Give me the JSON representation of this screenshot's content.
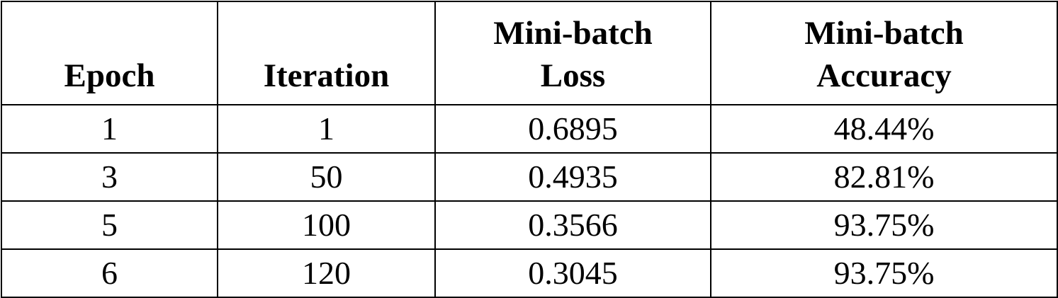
{
  "table": {
    "headers": [
      [
        "Epoch"
      ],
      [
        "Iteration"
      ],
      [
        "Mini-batch",
        "Loss"
      ],
      [
        "Mini-batch",
        "Accuracy"
      ]
    ],
    "rows": [
      [
        "1",
        "1",
        "0.6895",
        "48.44%"
      ],
      [
        "3",
        "50",
        "0.4935",
        "82.81%"
      ],
      [
        "5",
        "100",
        "0.3566",
        "93.75%"
      ],
      [
        "6",
        "120",
        "0.3045",
        "93.75%"
      ]
    ]
  }
}
